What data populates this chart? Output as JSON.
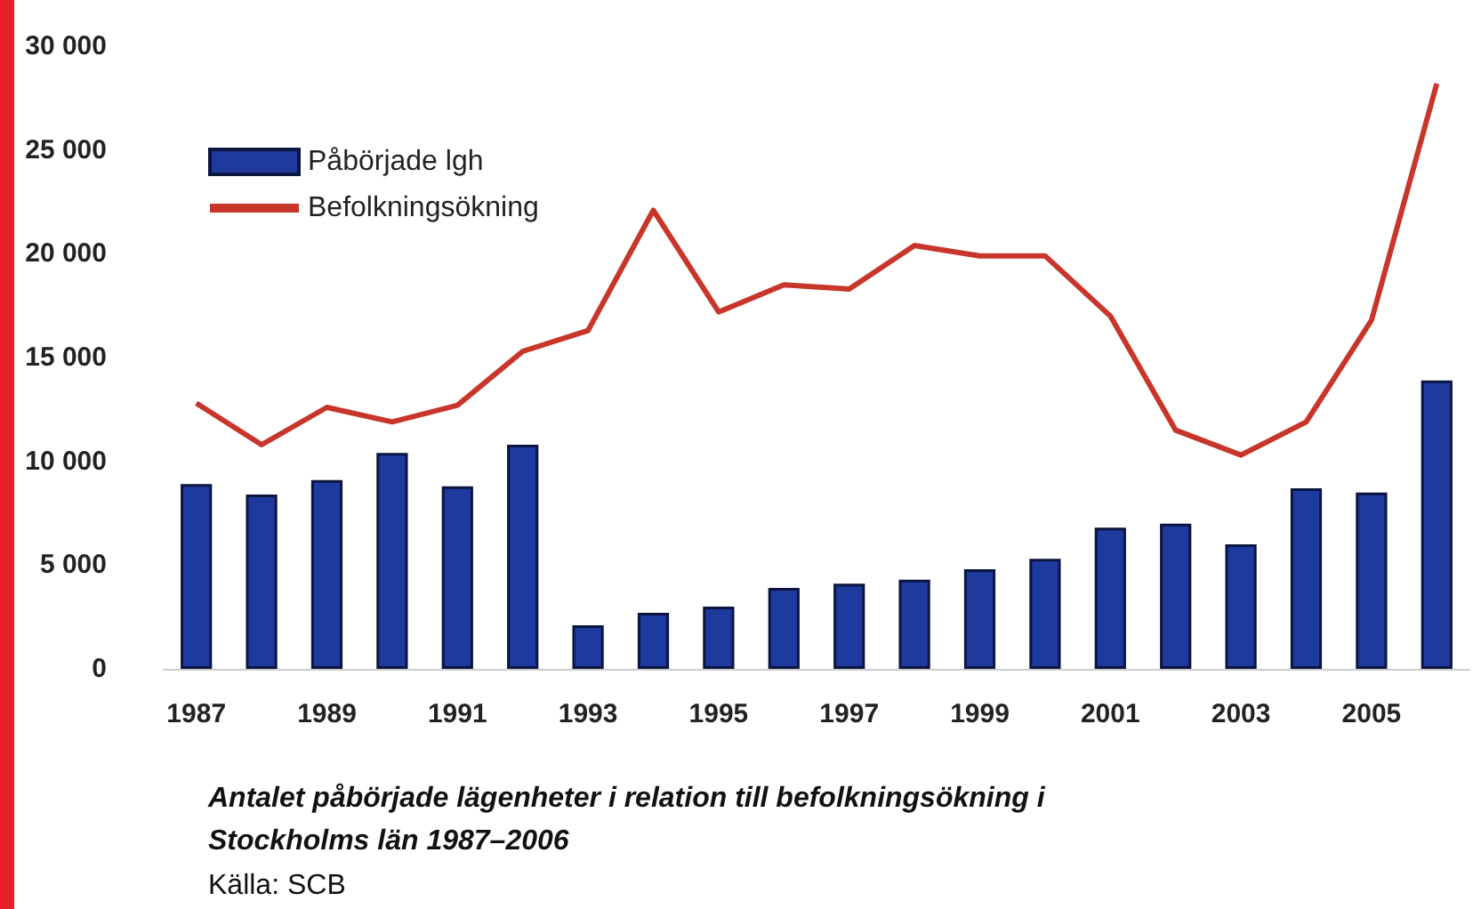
{
  "chart_data": {
    "type": "bar",
    "title": "Antalet påbörjade lägenheter i relation till befolkningsökning i Stockholms län 1987–2006",
    "annotations": [
      "Källa: SCB"
    ],
    "categories": [
      "1987",
      null,
      "1989",
      null,
      "1991",
      null,
      "1993",
      null,
      "1995",
      null,
      "1997",
      null,
      "1999",
      null,
      "2001",
      null,
      "2003",
      null,
      "2005",
      null
    ],
    "series": [
      {
        "name": "Påbörjade lgh",
        "color": "#1f3a9e",
        "values": [
          8900,
          8400,
          9100,
          10400,
          8800,
          10800,
          2100,
          2700,
          3000,
          3900,
          4100,
          4300,
          4800,
          5300,
          6800,
          7000,
          6000,
          8700,
          8500,
          13900
        ]
      },
      {
        "name": "Befolkningsökning",
        "type": "line",
        "color": "#c8352a",
        "values": [
          12800,
          10800,
          12600,
          11900,
          12700,
          15300,
          16300,
          22100,
          17200,
          18500,
          18300,
          20400,
          19900,
          19900,
          17000,
          11500,
          10300,
          11900,
          16800,
          28200
        ]
      }
    ],
    "ylim": [
      0,
      30000
    ],
    "yticks": [
      {
        "value": 0,
        "label": "0"
      },
      {
        "value": 5000,
        "label": "5 000"
      },
      {
        "value": 10000,
        "label": "10 000"
      },
      {
        "value": 15000,
        "label": "15 000"
      },
      {
        "value": 20000,
        "label": "20 000"
      },
      {
        "value": 25000,
        "label": "25 000"
      },
      {
        "value": 30000,
        "label": "30 000"
      }
    ],
    "legend": "top left",
    "marker": "none"
  }
}
